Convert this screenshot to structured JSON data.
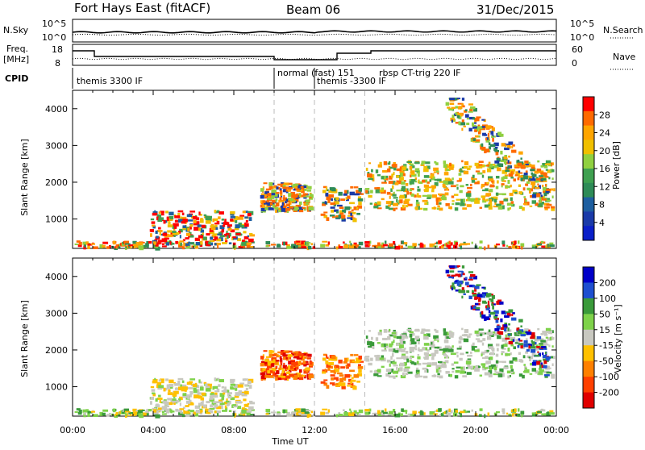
{
  "header": {
    "left": "Fort Hays East (fitACF)",
    "center": "Beam 06",
    "right": "31/Dec/2015"
  },
  "panels": {
    "nsky": {
      "left_label": "N.Sky",
      "right_label": "N.Search",
      "left_ticks": [
        "10^5",
        "10^0"
      ],
      "right_ticks": [
        "10^5",
        "10^0"
      ]
    },
    "freq": {
      "left_label": "Freq.",
      "unit_label": "[MHz]",
      "right_label": "Nave",
      "left_ticks": [
        "18",
        "8"
      ],
      "right_ticks": [
        "60",
        "0"
      ]
    },
    "cpid": {
      "label": "CPID",
      "segments": [
        {
          "text": "themis 3300 IF"
        },
        {
          "text": "normal (fast) 151"
        },
        {
          "text": "themis -3300 IF"
        },
        {
          "text": "rbsp CT-trig 220 IF"
        }
      ]
    }
  },
  "chart_data": [
    {
      "type": "heatmap",
      "name": "power",
      "ylabel": "Slant Range [km]",
      "yticks": [
        "4000",
        "3000",
        "2000",
        "1000"
      ],
      "ylim": [
        200,
        4500
      ],
      "colorbar": {
        "label": "Power [dB]",
        "ticks": [
          "28",
          "24",
          "20",
          "16",
          "12",
          "8",
          "4"
        ],
        "colors": [
          "#ff0000",
          "#ff6a00",
          "#ffa500",
          "#f0c000",
          "#90d040",
          "#3fa050",
          "#2e8b57",
          "#1e5fa0",
          "#1a3aa8",
          "#0a1fc8"
        ]
      },
      "x": [
        "00:00",
        "04:00",
        "08:00",
        "12:00",
        "16:00",
        "20:00",
        "00:00"
      ]
    },
    {
      "type": "heatmap",
      "name": "velocity",
      "xlabel": "Time UT",
      "ylabel": "Slant Range [km]",
      "yticks": [
        "4000",
        "3000",
        "2000",
        "1000"
      ],
      "ylim": [
        200,
        4500
      ],
      "colorbar": {
        "label": "Velocity [m s⁻¹]",
        "ticks": [
          "200",
          "100",
          "50",
          "15",
          "-15",
          "-50",
          "-100",
          "-200"
        ],
        "colors": [
          "#0000c8",
          "#1e4fd0",
          "#3a9a3a",
          "#7ed24a",
          "#c8c8c0",
          "#ffc000",
          "#ff8000",
          "#ff4000",
          "#e00000"
        ]
      },
      "x": [
        "00:00",
        "04:00",
        "08:00",
        "12:00",
        "16:00",
        "20:00",
        "00:00"
      ]
    }
  ]
}
